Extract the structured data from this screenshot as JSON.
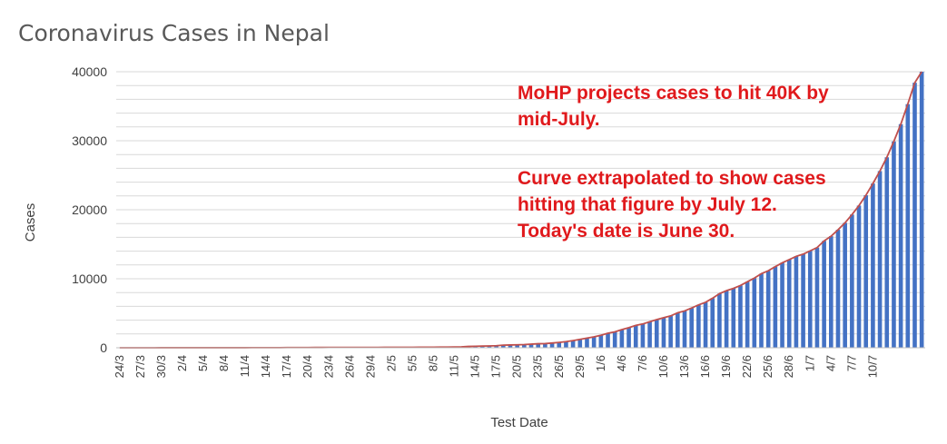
{
  "chart_data": {
    "type": "bar",
    "title": "Coronavirus Cases in Nepal",
    "xlabel": "Test Date",
    "ylabel": "Cases",
    "ylim": [
      0,
      40000
    ],
    "yticks": [
      0,
      10000,
      20000,
      30000,
      40000
    ],
    "grid": true,
    "colors": {
      "bar": "#4472c4",
      "trend": "#c0504d",
      "annotation": "#e0191c",
      "grid": "#d9d9d9"
    },
    "x_tick_labels": [
      "24/3",
      "27/3",
      "30/3",
      "2/4",
      "5/4",
      "8/4",
      "11/4",
      "14/4",
      "17/4",
      "20/4",
      "23/4",
      "26/4",
      "29/4",
      "2/5",
      "5/5",
      "8/5",
      "11/5",
      "14/5",
      "17/5",
      "20/5",
      "23/5",
      "26/5",
      "29/5",
      "1/6",
      "4/6",
      "7/6",
      "10/6",
      "13/6",
      "16/6",
      "19/6",
      "22/6",
      "25/6",
      "28/6",
      "1/7",
      "4/7",
      "7/7",
      "10/7"
    ],
    "series": [
      {
        "values": [
          2,
          2,
          3,
          3,
          3,
          4,
          5,
          5,
          5,
          6,
          6,
          6,
          7,
          9,
          9,
          9,
          9,
          9,
          9,
          12,
          14,
          16,
          16,
          16,
          31,
          31,
          31,
          31,
          42,
          43,
          45,
          48,
          48,
          49,
          49,
          52,
          52,
          54,
          57,
          57,
          57,
          59,
          59,
          75,
          82,
          82,
          99,
          101,
          110,
          134,
          191,
          217,
          248,
          267,
          292,
          375,
          402,
          427,
          457,
          517,
          584,
          603,
          682,
          772,
          886,
          1042,
          1212,
          1401,
          1572,
          1811,
          2099,
          2300,
          2634,
          2912,
          3235,
          3448,
          3762,
          4085,
          4364,
          4614,
          5062,
          5335,
          5760,
          6211,
          6591,
          7177,
          7848,
          8274,
          8605,
          9026,
          9561,
          10099,
          10728,
          11162,
          11755,
          12309,
          12772,
          13248,
          13564,
          14046,
          14519,
          15491,
          16168,
          17100,
          18100,
          19300,
          20600,
          22100,
          23800,
          25600,
          27600,
          29900,
          32400,
          35300,
          38400,
          40000
        ]
      }
    ],
    "trendline": true,
    "annotations": [
      "MoHP projects cases to hit 40K by",
      "mid-July.",
      "Curve extrapolated to show cases",
      "hitting that figure by July 12.",
      "Today's date is June 30."
    ]
  }
}
